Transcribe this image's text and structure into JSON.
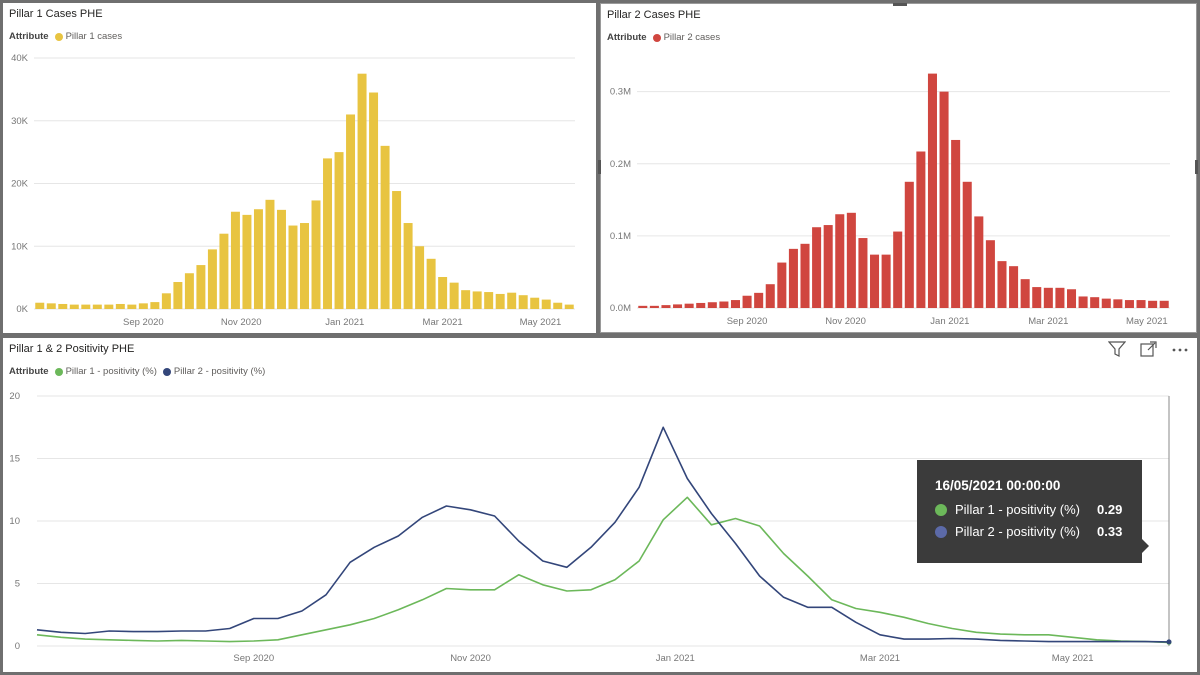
{
  "panel1": {
    "title": "Pillar 1 Cases PHE",
    "legend_title": "Attribute",
    "chart_data": {
      "type": "bar",
      "title": "Pillar 1 Cases PHE",
      "series_name": "Pillar 1 cases",
      "color": "#E8C441",
      "ylim": [
        0,
        40000
      ],
      "yticks": [
        {
          "v": 0,
          "t": "0K"
        },
        {
          "v": 10000,
          "t": "10K"
        },
        {
          "v": 20000,
          "t": "20K"
        },
        {
          "v": 30000,
          "t": "30K"
        },
        {
          "v": 40000,
          "t": "40K"
        }
      ],
      "xticks": [
        {
          "i": 9,
          "t": "Sep 2020"
        },
        {
          "i": 17.5,
          "t": "Nov 2020"
        },
        {
          "i": 26.5,
          "t": "Jan 2021"
        },
        {
          "i": 35,
          "t": "Mar 2021"
        },
        {
          "i": 43.5,
          "t": "May 2021"
        }
      ],
      "values": [
        1000,
        900,
        800,
        700,
        700,
        700,
        700,
        800,
        700,
        900,
        1100,
        2500,
        4300,
        5700,
        7000,
        9500,
        12000,
        15500,
        15000,
        15900,
        17400,
        15800,
        13300,
        13700,
        17300,
        24000,
        25000,
        31000,
        37500,
        34500,
        26000,
        18800,
        13700,
        10000,
        8000,
        5100,
        4200,
        3000,
        2800,
        2700,
        2400,
        2600,
        2200,
        1800,
        1500,
        1000,
        700
      ]
    }
  },
  "panel2": {
    "title": "Pillar 2 Cases PHE",
    "legend_title": "Attribute",
    "chart_data": {
      "type": "bar",
      "title": "Pillar 2 Cases PHE",
      "series_name": "Pillar 2 cases",
      "color": "#D0463F",
      "ylim": [
        0,
        0.33
      ],
      "yticks": [
        {
          "v": 0,
          "t": "0.0M"
        },
        {
          "v": 0.1,
          "t": "0.1M"
        },
        {
          "v": 0.2,
          "t": "0.2M"
        },
        {
          "v": 0.3,
          "t": "0.3M"
        }
      ],
      "xticks": [
        {
          "i": 9,
          "t": "Sep 2020"
        },
        {
          "i": 17.5,
          "t": "Nov 2020"
        },
        {
          "i": 26.5,
          "t": "Jan 2021"
        },
        {
          "i": 35,
          "t": "Mar 2021"
        },
        {
          "i": 43.5,
          "t": "May 2021"
        }
      ],
      "values": [
        0.003,
        0.003,
        0.004,
        0.005,
        0.006,
        0.007,
        0.008,
        0.009,
        0.011,
        0.017,
        0.021,
        0.033,
        0.063,
        0.082,
        0.089,
        0.112,
        0.115,
        0.13,
        0.132,
        0.097,
        0.074,
        0.074,
        0.106,
        0.175,
        0.217,
        0.325,
        0.3,
        0.233,
        0.175,
        0.127,
        0.094,
        0.065,
        0.058,
        0.04,
        0.029,
        0.028,
        0.028,
        0.026,
        0.016,
        0.015,
        0.013,
        0.012,
        0.011,
        0.011,
        0.01,
        0.01
      ]
    }
  },
  "panel3": {
    "title": "Pillar 1 & 2 Positivity PHE",
    "legend_title": "Attribute",
    "chart_data": {
      "type": "line",
      "title": "Pillar 1 & 2 Positivity PHE",
      "ylim": [
        0,
        20
      ],
      "yticks": [
        0,
        5,
        10,
        15,
        20
      ],
      "xticks": [
        {
          "i": 9,
          "t": "Sep 2020"
        },
        {
          "i": 18,
          "t": "Nov 2020"
        },
        {
          "i": 26.5,
          "t": "Jan 2021"
        },
        {
          "i": 35,
          "t": "Mar 2021"
        },
        {
          "i": 43,
          "t": "May 2021"
        }
      ],
      "series": [
        {
          "name": "Pillar 1 - positivity (%)",
          "color": "#6CB85A",
          "values": [
            0.9,
            0.7,
            0.55,
            0.5,
            0.45,
            0.4,
            0.45,
            0.4,
            0.35,
            0.4,
            0.5,
            0.9,
            1.3,
            1.7,
            2.2,
            2.9,
            3.7,
            4.6,
            4.5,
            4.5,
            5.7,
            4.9,
            4.4,
            4.5,
            5.3,
            6.8,
            10.1,
            11.9,
            9.7,
            10.2,
            9.6,
            7.4,
            5.6,
            3.7,
            3.0,
            2.7,
            2.3,
            1.8,
            1.4,
            1.1,
            0.95,
            0.9,
            0.9,
            0.7,
            0.5,
            0.4,
            0.35,
            0.29
          ]
        },
        {
          "name": "Pillar 2 - positivity (%)",
          "color": "#33467A",
          "values": [
            1.3,
            1.1,
            1.0,
            1.2,
            1.15,
            1.15,
            1.2,
            1.2,
            1.4,
            2.2,
            2.2,
            2.8,
            4.1,
            6.7,
            7.9,
            8.8,
            10.3,
            11.2,
            10.9,
            10.4,
            8.4,
            6.8,
            6.3,
            7.9,
            9.9,
            12.7,
            17.5,
            13.4,
            10.6,
            8.2,
            5.6,
            3.9,
            3.1,
            3.1,
            1.9,
            0.9,
            0.55,
            0.55,
            0.6,
            0.55,
            0.45,
            0.4,
            0.35,
            0.35,
            0.35,
            0.35,
            0.35,
            0.33
          ]
        }
      ]
    },
    "tooltip": {
      "date": "16/05/2021 00:00:00",
      "rows": [
        {
          "label": "Pillar 1 - positivity (%)",
          "value": "0.29",
          "color": "#6CB85A"
        },
        {
          "label": "Pillar 2 - positivity (%)",
          "value": "0.33",
          "color": "#33467A"
        }
      ]
    },
    "icons": [
      "filter-icon",
      "expand-icon",
      "more-options-icon"
    ]
  }
}
